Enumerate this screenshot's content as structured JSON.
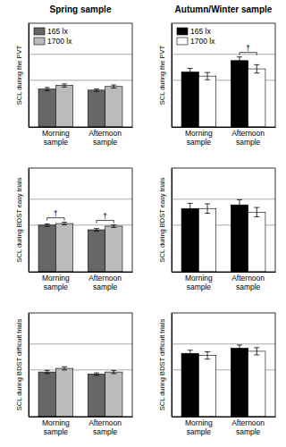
{
  "chart_data": [
    {
      "type": "bar",
      "title": "Spring sample",
      "y_label": "SCL during the PVT",
      "categories": [
        "Morning sample",
        "Afternoon sample"
      ],
      "series": [
        {
          "name": "165 lx",
          "color": "#666666",
          "values": [
            3.65,
            3.55
          ],
          "errors": [
            0.15,
            0.12
          ]
        },
        {
          "name": "1700 lx",
          "color": "#bbbbbb",
          "values": [
            4.0,
            3.9
          ],
          "errors": [
            0.15,
            0.15
          ]
        }
      ],
      "ylim": [
        0,
        10
      ],
      "yticks": [
        4.5,
        7
      ],
      "grid": true,
      "tick_labels": "x",
      "legend": "upper left",
      "annotations": []
    },
    {
      "type": "bar",
      "title": "Autumn/Winter sample",
      "y_label": "SCL during the PVT",
      "categories": [
        "Morning sample",
        "Afternoon sample"
      ],
      "series": [
        {
          "name": "165 lx",
          "color": "#000000",
          "values": [
            5.3,
            6.4
          ],
          "errors": [
            0.35,
            0.35
          ]
        },
        {
          "name": "1700 lx",
          "color": "#ffffff",
          "values": [
            4.9,
            5.6
          ],
          "errors": [
            0.35,
            0.4
          ]
        }
      ],
      "ylim": [
        0,
        10
      ],
      "yticks": [
        4.5,
        7
      ],
      "grid": true,
      "tick_labels": "x",
      "legend": "upper left",
      "annotations": [
        {
          "category": 1,
          "text": "†"
        }
      ]
    },
    {
      "type": "bar",
      "y_label": "SCL during BDST easy trials",
      "categories": [
        "Morning sample",
        "Afternoon sample"
      ],
      "series": [
        {
          "color": "#666666",
          "values": [
            4.5,
            4.05
          ],
          "errors": [
            0.12,
            0.12
          ]
        },
        {
          "color": "#bbbbbb",
          "values": [
            4.65,
            4.4
          ],
          "errors": [
            0.12,
            0.12
          ]
        }
      ],
      "ylim": [
        0,
        10
      ],
      "yticks": [
        4.5,
        7
      ],
      "grid": true,
      "tick_labels": "x",
      "annotations": [
        {
          "category": 0,
          "text": "†"
        },
        {
          "category": 1,
          "text": "†"
        }
      ]
    },
    {
      "type": "bar",
      "y_label": "SCL during BDST easy trials",
      "categories": [
        "Morning sample",
        "Afternoon sample"
      ],
      "series": [
        {
          "color": "#000000",
          "values": [
            6.1,
            6.45
          ],
          "errors": [
            0.5,
            0.5
          ]
        },
        {
          "color": "#ffffff",
          "values": [
            6.1,
            5.75
          ],
          "errors": [
            0.45,
            0.45
          ]
        }
      ],
      "ylim": [
        0,
        10
      ],
      "yticks": [
        4.5,
        7
      ],
      "grid": true,
      "tick_labels": "x",
      "annotations": []
    },
    {
      "type": "bar",
      "y_label": "SCL during BDST difficult trials",
      "categories": [
        "Morning sample",
        "Afternoon sample"
      ],
      "series": [
        {
          "color": "#666666",
          "values": [
            4.3,
            4.1
          ],
          "errors": [
            0.15,
            0.12
          ]
        },
        {
          "color": "#bbbbbb",
          "values": [
            4.65,
            4.3
          ],
          "errors": [
            0.15,
            0.15
          ]
        }
      ],
      "ylim": [
        0,
        10
      ],
      "yticks": [
        4.5,
        7
      ],
      "grid": true,
      "tick_labels": "x",
      "annotations": []
    },
    {
      "type": "bar",
      "y_label": "SCL during BDST difficult trials",
      "categories": [
        "Morning sample",
        "Afternoon sample"
      ],
      "series": [
        {
          "color": "#000000",
          "values": [
            6.1,
            6.6
          ],
          "errors": [
            0.3,
            0.3
          ]
        },
        {
          "color": "#ffffff",
          "values": [
            5.9,
            6.3
          ],
          "errors": [
            0.35,
            0.35
          ]
        }
      ],
      "ylim": [
        0,
        10
      ],
      "yticks": [
        4.5,
        7
      ],
      "grid": true,
      "tick_labels": "x",
      "annotations": []
    }
  ]
}
